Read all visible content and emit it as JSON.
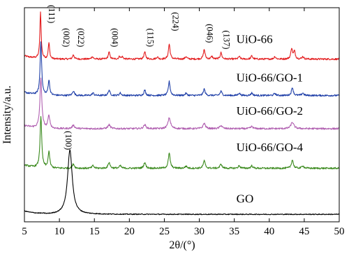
{
  "chart_data": {
    "type": "line",
    "title": "",
    "xlabel": "2θ/(°)",
    "ylabel": "Intensity/a.u.",
    "xlim": [
      5,
      50
    ],
    "x_ticks": [
      5,
      10,
      15,
      20,
      25,
      30,
      35,
      40,
      45,
      50
    ],
    "y_ticks_shown": false,
    "grid": false,
    "legend": "none (series labeled inline)",
    "series": [
      {
        "name": "UiO-66",
        "color": "#e31a1c",
        "baseline": 0.76,
        "noise": 0.004,
        "peaks": [
          {
            "x": 7.3,
            "h": 0.215,
            "w": 0.11
          },
          {
            "x": 8.5,
            "h": 0.075,
            "w": 0.12
          },
          {
            "x": 12.0,
            "h": 0.02,
            "w": 0.14
          },
          {
            "x": 14.7,
            "h": 0.012,
            "w": 0.14
          },
          {
            "x": 17.1,
            "h": 0.032,
            "w": 0.14
          },
          {
            "x": 18.6,
            "h": 0.012,
            "w": 0.14
          },
          {
            "x": 19.0,
            "h": 0.01,
            "w": 0.14
          },
          {
            "x": 22.2,
            "h": 0.033,
            "w": 0.14
          },
          {
            "x": 24.0,
            "h": 0.01,
            "w": 0.14
          },
          {
            "x": 25.7,
            "h": 0.07,
            "w": 0.14
          },
          {
            "x": 28.1,
            "h": 0.012,
            "w": 0.14
          },
          {
            "x": 30.7,
            "h": 0.045,
            "w": 0.14
          },
          {
            "x": 31.8,
            "h": 0.012,
            "w": 0.14
          },
          {
            "x": 33.1,
            "h": 0.03,
            "w": 0.14
          },
          {
            "x": 35.7,
            "h": 0.012,
            "w": 0.14
          },
          {
            "x": 37.5,
            "h": 0.015,
            "w": 0.14
          },
          {
            "x": 40.8,
            "h": 0.012,
            "w": 0.14
          },
          {
            "x": 43.2,
            "h": 0.05,
            "w": 0.14
          },
          {
            "x": 43.6,
            "h": 0.035,
            "w": 0.14
          },
          {
            "x": 44.8,
            "h": 0.012,
            "w": 0.14
          }
        ]
      },
      {
        "name": "UiO-66/GO-1",
        "color": "#1f3fa8",
        "baseline": 0.59,
        "noise": 0.004,
        "peaks": [
          {
            "x": 7.35,
            "h": 0.25,
            "w": 0.13
          },
          {
            "x": 8.5,
            "h": 0.07,
            "w": 0.14
          },
          {
            "x": 12.0,
            "h": 0.022,
            "w": 0.15
          },
          {
            "x": 14.8,
            "h": 0.012,
            "w": 0.15
          },
          {
            "x": 17.1,
            "h": 0.025,
            "w": 0.15
          },
          {
            "x": 18.7,
            "h": 0.012,
            "w": 0.15
          },
          {
            "x": 22.2,
            "h": 0.025,
            "w": 0.15
          },
          {
            "x": 25.7,
            "h": 0.065,
            "w": 0.15
          },
          {
            "x": 28.1,
            "h": 0.01,
            "w": 0.15
          },
          {
            "x": 30.7,
            "h": 0.03,
            "w": 0.15
          },
          {
            "x": 33.1,
            "h": 0.02,
            "w": 0.15
          },
          {
            "x": 35.7,
            "h": 0.012,
            "w": 0.15
          },
          {
            "x": 37.5,
            "h": 0.012,
            "w": 0.15
          },
          {
            "x": 40.8,
            "h": 0.01,
            "w": 0.15
          },
          {
            "x": 43.3,
            "h": 0.038,
            "w": 0.15
          },
          {
            "x": 44.8,
            "h": 0.012,
            "w": 0.15
          }
        ]
      },
      {
        "name": "UiO-66/GO-2",
        "color": "#b05fb0",
        "baseline": 0.435,
        "noise": 0.004,
        "peaks": [
          {
            "x": 7.35,
            "h": 0.23,
            "w": 0.16
          },
          {
            "x": 8.5,
            "h": 0.06,
            "w": 0.17
          },
          {
            "x": 12.0,
            "h": 0.016,
            "w": 0.2
          },
          {
            "x": 17.1,
            "h": 0.018,
            "w": 0.2
          },
          {
            "x": 22.2,
            "h": 0.018,
            "w": 0.2
          },
          {
            "x": 25.7,
            "h": 0.05,
            "w": 0.22
          },
          {
            "x": 30.7,
            "h": 0.025,
            "w": 0.2
          },
          {
            "x": 33.1,
            "h": 0.015,
            "w": 0.2
          },
          {
            "x": 37.5,
            "h": 0.01,
            "w": 0.2
          },
          {
            "x": 43.3,
            "h": 0.03,
            "w": 0.25
          }
        ]
      },
      {
        "name": "UiO-66/GO-4",
        "color": "#3b8a1e",
        "baseline": 0.25,
        "noise": 0.004,
        "peaks": [
          {
            "x": 7.35,
            "h": 0.24,
            "w": 0.14
          },
          {
            "x": 8.5,
            "h": 0.075,
            "w": 0.15
          },
          {
            "x": 12.0,
            "h": 0.02,
            "w": 0.16
          },
          {
            "x": 14.8,
            "h": 0.012,
            "w": 0.16
          },
          {
            "x": 17.1,
            "h": 0.028,
            "w": 0.16
          },
          {
            "x": 18.7,
            "h": 0.012,
            "w": 0.16
          },
          {
            "x": 22.2,
            "h": 0.028,
            "w": 0.16
          },
          {
            "x": 25.7,
            "h": 0.07,
            "w": 0.16
          },
          {
            "x": 28.1,
            "h": 0.01,
            "w": 0.16
          },
          {
            "x": 30.7,
            "h": 0.035,
            "w": 0.16
          },
          {
            "x": 33.1,
            "h": 0.02,
            "w": 0.16
          },
          {
            "x": 35.7,
            "h": 0.012,
            "w": 0.16
          },
          {
            "x": 37.5,
            "h": 0.012,
            "w": 0.16
          },
          {
            "x": 43.3,
            "h": 0.04,
            "w": 0.16
          },
          {
            "x": 44.8,
            "h": 0.012,
            "w": 0.16
          }
        ]
      },
      {
        "name": "GO",
        "color": "#000000",
        "baseline": 0.035,
        "noise": 0.002,
        "peaks": [
          {
            "x": 11.5,
            "h": 0.3,
            "w": 0.4
          }
        ]
      }
    ],
    "series_labels": [
      {
        "text": "UiO-66",
        "x": 35.3,
        "y": 0.835
      },
      {
        "text": "UiO-66/GO-1",
        "x": 35.3,
        "y": 0.655
      },
      {
        "text": "UiO-66/GO-2",
        "x": 35.3,
        "y": 0.5
      },
      {
        "text": "UiO-66/GO-4",
        "x": 35.3,
        "y": 0.33
      },
      {
        "text": "GO",
        "x": 35.3,
        "y": 0.09
      }
    ],
    "peak_annotations": [
      {
        "text": "(111)",
        "x": 8.1,
        "y": 0.97
      },
      {
        "text": "(002)",
        "x": 10.2,
        "y": 0.86
      },
      {
        "text": "(022)",
        "x": 12.3,
        "y": 0.86
      },
      {
        "text": "(004)",
        "x": 17.1,
        "y": 0.86
      },
      {
        "text": "(115)",
        "x": 22.2,
        "y": 0.86
      },
      {
        "text": "(224)",
        "x": 25.8,
        "y": 0.935
      },
      {
        "text": "(046)",
        "x": 30.7,
        "y": 0.88
      },
      {
        "text": "(137)",
        "x": 33.1,
        "y": 0.85
      },
      {
        "text": "(100)",
        "x": 10.5,
        "y": 0.38
      }
    ]
  }
}
